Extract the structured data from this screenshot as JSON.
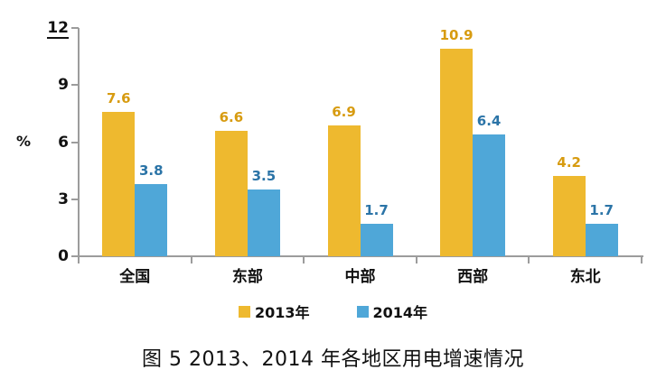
{
  "chart_data": {
    "type": "bar",
    "title": "",
    "categories": [
      "全国",
      "东部",
      "中部",
      "西部",
      "东北"
    ],
    "series": [
      {
        "name": "2013年",
        "values": [
          7.6,
          6.6,
          6.9,
          10.9,
          4.2
        ],
        "color": "#EEB92F",
        "label_color": "#D79B10"
      },
      {
        "name": "2014年",
        "values": [
          3.8,
          3.5,
          1.7,
          6.4,
          1.7
        ],
        "color": "#4FA7D8",
        "label_color": "#2B74A7"
      }
    ],
    "xlabel": "",
    "ylabel": "%",
    "yticks": [
      0,
      3,
      6,
      9,
      12
    ],
    "ylim": [
      0,
      12
    ],
    "grid": false,
    "legend_position": "bottom",
    "axis_color": "#9c9c9c"
  },
  "caption": "图 5  2013、2014 年各地区用电增速情况"
}
